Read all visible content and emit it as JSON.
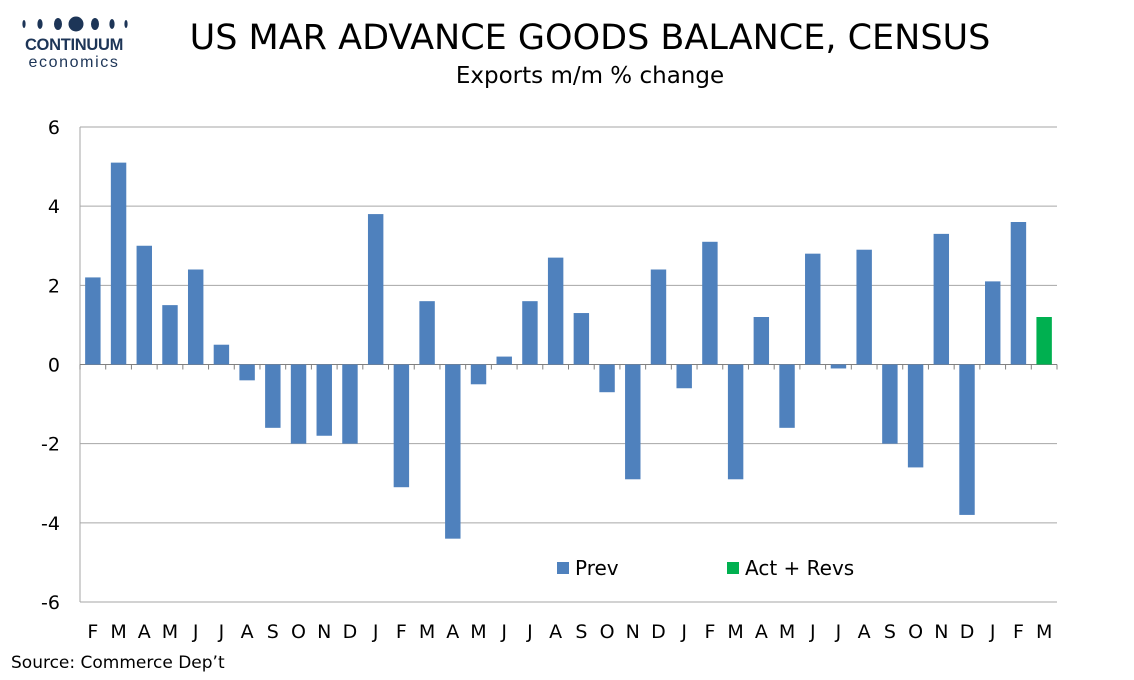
{
  "logo": {
    "name": "CONTINUUM",
    "tagline": "economics"
  },
  "title": "US MAR ADVANCE GOODS BALANCE, CENSUS",
  "subtitle": "Exports m/m % change",
  "source": "Source: Commerce Dep’t",
  "colors": {
    "prev": "#4f81bd",
    "act": "#00b050",
    "grid": "#a6a6a6",
    "logo": "#1d3557"
  },
  "chart_data": {
    "type": "bar",
    "title": "US MAR ADVANCE GOODS BALANCE, CENSUS",
    "subtitle": "Exports m/m % change",
    "xlabel": "",
    "ylabel": "",
    "ylim": [
      -6,
      6
    ],
    "yticks": [
      6,
      4,
      2,
      0,
      -2,
      -4,
      -6
    ],
    "ytick_labels": [
      "6",
      "4",
      "2",
      "0",
      "-2",
      "-4",
      "-6"
    ],
    "grid": true,
    "legend_position": "bottom-right",
    "categories": [
      "F",
      "M",
      "A",
      "M",
      "J",
      "J",
      "A",
      "S",
      "O",
      "N",
      "D",
      "J",
      "F",
      "M",
      "A",
      "M",
      "J",
      "J",
      "A",
      "S",
      "O",
      "N",
      "D",
      "J",
      "F",
      "M",
      "A",
      "M",
      "J",
      "J",
      "A",
      "S",
      "O",
      "N",
      "D",
      "J",
      "F",
      "M"
    ],
    "series": [
      {
        "name": "Prev",
        "color": "#4f81bd",
        "values": [
          2.2,
          5.1,
          3.0,
          1.5,
          2.4,
          0.5,
          -0.4,
          -1.6,
          -2.0,
          -1.8,
          -2.0,
          3.8,
          -3.1,
          1.6,
          -4.4,
          -0.5,
          0.2,
          1.6,
          2.7,
          1.3,
          -0.7,
          -2.9,
          2.4,
          -0.6,
          3.1,
          -2.9,
          1.2,
          -1.6,
          2.8,
          -0.1,
          2.9,
          -2.0,
          -2.6,
          3.3,
          -3.8,
          2.1,
          3.6,
          null
        ]
      },
      {
        "name": "Act + Revs",
        "color": "#00b050",
        "values": [
          null,
          null,
          null,
          null,
          null,
          null,
          null,
          null,
          null,
          null,
          null,
          null,
          null,
          null,
          null,
          null,
          null,
          null,
          null,
          null,
          null,
          null,
          null,
          null,
          null,
          null,
          null,
          null,
          null,
          null,
          null,
          null,
          null,
          null,
          null,
          null,
          null,
          1.2
        ]
      }
    ]
  }
}
